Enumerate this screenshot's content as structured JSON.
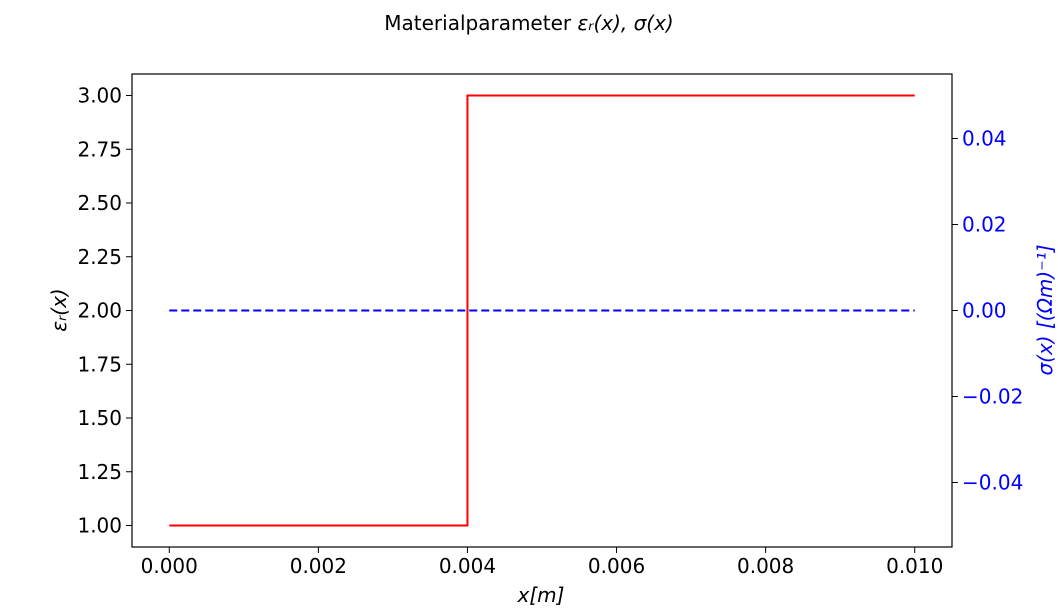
{
  "chart_data": {
    "type": "line",
    "title_prefix": "Materialparameter ",
    "title_math": "εᵣ(x), σ(x)",
    "xlabel": "x[m]",
    "ylabel_left": "εᵣ(x)",
    "ylabel_right": "σ(x) [(Ωm)⁻¹]",
    "xlim": [
      -0.0005,
      0.0105
    ],
    "ylim_left": [
      0.9,
      3.1
    ],
    "ylim_right": [
      -0.055,
      0.055
    ],
    "x_ticks": [
      0.0,
      0.002,
      0.004,
      0.006,
      0.008,
      0.01
    ],
    "x_tick_labels": [
      "0.000",
      "0.002",
      "0.004",
      "0.006",
      "0.008",
      "0.010"
    ],
    "y_left_ticks": [
      1.0,
      1.25,
      1.5,
      1.75,
      2.0,
      2.25,
      2.5,
      2.75,
      3.0
    ],
    "y_left_tick_labels": [
      "1.00",
      "1.25",
      "1.50",
      "1.75",
      "2.00",
      "2.25",
      "2.50",
      "2.75",
      "3.00"
    ],
    "y_right_ticks": [
      -0.04,
      -0.02,
      0.0,
      0.02,
      0.04
    ],
    "y_right_tick_labels": [
      "−0.04",
      "−0.02",
      "0.00",
      "0.02",
      "0.04"
    ],
    "grid": false,
    "legend": "none",
    "series": [
      {
        "axis": "left",
        "color": "#ff0000",
        "style": "solid",
        "x": [
          0.0,
          0.004,
          0.004,
          0.01
        ],
        "y": [
          1.0,
          1.0,
          3.0,
          3.0
        ]
      },
      {
        "axis": "right",
        "color": "#0000ff",
        "style": "dashed",
        "x": [
          0.0,
          0.01
        ],
        "y": [
          0.0,
          0.0
        ]
      }
    ],
    "right_axis_color": "#0000ff"
  }
}
